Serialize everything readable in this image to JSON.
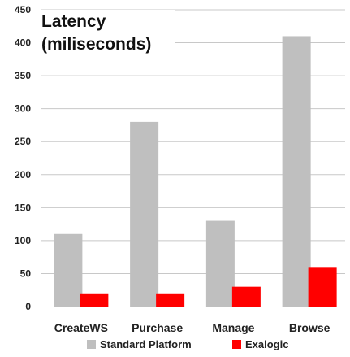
{
  "chart_data": {
    "type": "bar",
    "title_lines": [
      "Latency",
      "(miliseconds)"
    ],
    "categories": [
      "CreateWS",
      "Purchase",
      "Manage",
      "Browse"
    ],
    "series": [
      {
        "name": "Standard Platform",
        "color": "#bfbfbf",
        "values": [
          110,
          280,
          130,
          410
        ]
      },
      {
        "name": "Exalogic",
        "color": "#ff0000",
        "values": [
          20,
          20,
          30,
          60
        ]
      }
    ],
    "ylim": [
      0,
      450
    ],
    "yticks": [
      0,
      50,
      100,
      150,
      200,
      250,
      300,
      350,
      400,
      450
    ],
    "grid": true,
    "legend_position": "bottom"
  }
}
